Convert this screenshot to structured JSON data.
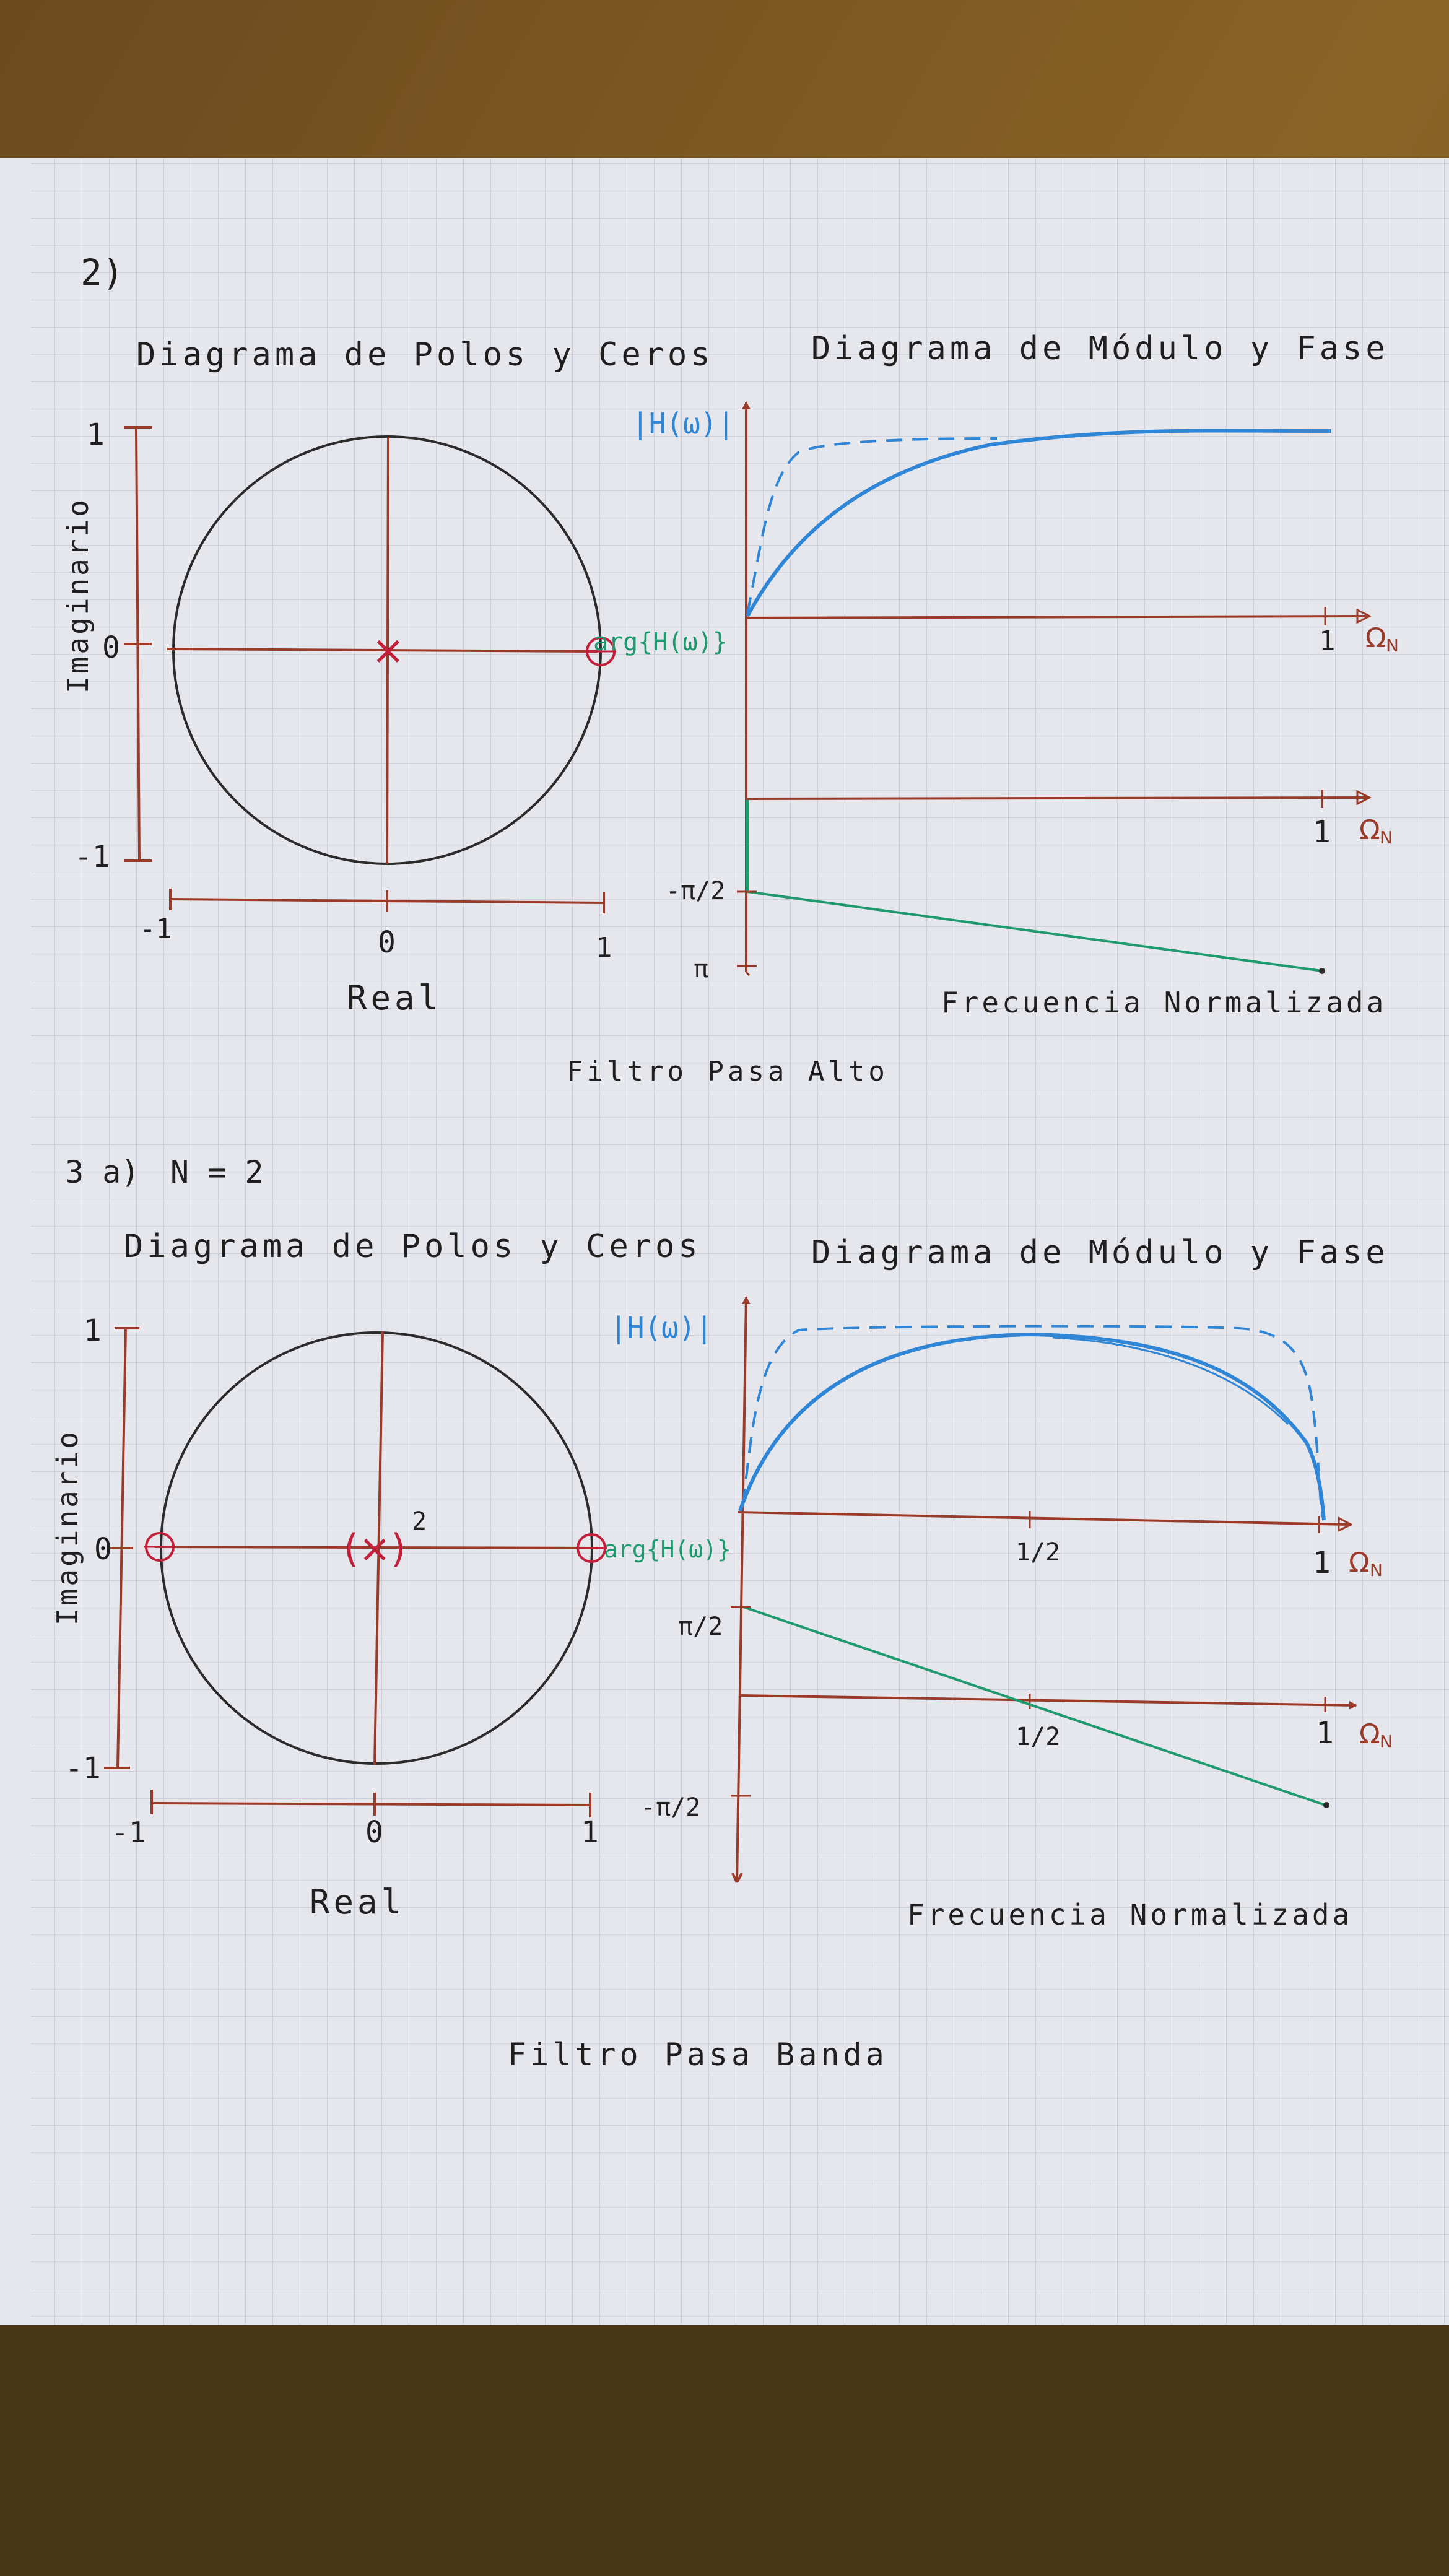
{
  "colors": {
    "axis": "#9a3b2a",
    "circle": "#2b2b2b",
    "pole": "#c2203a",
    "zero": "#c2203a",
    "magnitude": "#2f86d6",
    "phase": "#1f9a6e",
    "text": "#1f1f1f",
    "paper": "#e5e6ec",
    "grid": "#c8cbd6"
  },
  "section2": {
    "label": "2)",
    "pz_title": "Diagrama de Polos y Ceros",
    "mf_title": "Diagrama de Módulo y Fase",
    "imag_label": "Imaginario",
    "real_label": "Real",
    "y_ticks": [
      "1",
      "0",
      "-1"
    ],
    "x_ticks": [
      "-1",
      "0",
      "1"
    ],
    "pole_marker": "×",
    "mag_label": "|H(ω)|",
    "phase_label": "arg{H(ω)}",
    "omega_label": "Ω",
    "omega_sub": "N",
    "omega_tick": "1",
    "phase_ticks": [
      "-π/2",
      "π"
    ],
    "freq_label": "Frecuencia Normalizada",
    "filter_name": "Filtro Pasa Alto"
  },
  "section3": {
    "label": "3 a)",
    "order": "N = 2",
    "pz_title": "Diagrama de Polos y Ceros",
    "mf_title": "Diagrama de Módulo y Fase",
    "imag_label": "Imaginario",
    "real_label": "Real",
    "y_ticks": [
      "1",
      "0",
      "-1"
    ],
    "x_ticks": [
      "-1",
      "0",
      "1"
    ],
    "pole_marker": "(×)",
    "pole_multiplicity": "2",
    "mag_label": "|H(ω)|",
    "phase_label": "arg{H(ω)}",
    "omega_label": "Ω",
    "omega_sub": "N",
    "mag_ticks": [
      "1/2",
      "1"
    ],
    "phase_axis_ticks": [
      "1/2",
      "1"
    ],
    "phase_ticks": [
      "π/2",
      "-π/2"
    ],
    "freq_label": "Frecuencia Normalizada",
    "filter_name": "Filtro Pasa Banda"
  }
}
